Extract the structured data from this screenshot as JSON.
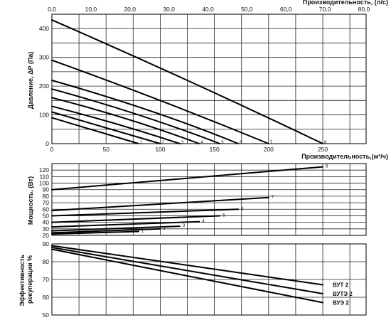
{
  "chart_data": [
    {
      "type": "line",
      "title": "",
      "xlabel": "Производительность,(м³/ч)",
      "x2label": "Производительность, (л/с)",
      "ylabel": "Давление, ΔP (Па)",
      "xlim": [
        0,
        290
      ],
      "ylim": [
        0,
        450
      ],
      "xticks": [
        "0",
        "50",
        "100",
        "150",
        "200",
        "250"
      ],
      "x2ticks": [
        "0,0",
        "10,0",
        "20,0",
        "30,0",
        "40,0",
        "50,0",
        "60,0",
        "70,0",
        "80,0"
      ],
      "yticks": [
        "0",
        "100",
        "200",
        "300",
        "400"
      ],
      "grid": true,
      "series": [
        {
          "name": "1",
          "x": [
            0,
            40,
            80
          ],
          "y": [
            90,
            45,
            0
          ]
        },
        {
          "name": "2",
          "x": [
            0,
            50,
            100
          ],
          "y": [
            110,
            55,
            0
          ]
        },
        {
          "name": "3",
          "x": [
            0,
            60,
            118
          ],
          "y": [
            130,
            68,
            0
          ]
        },
        {
          "name": "4",
          "x": [
            0,
            70,
            136
          ],
          "y": [
            160,
            85,
            0
          ]
        },
        {
          "name": "5",
          "x": [
            0,
            80,
            155
          ],
          "y": [
            190,
            100,
            0
          ]
        },
        {
          "name": "6",
          "x": [
            0,
            90,
            172
          ],
          "y": [
            220,
            115,
            0
          ]
        },
        {
          "name": "7",
          "x": [
            0,
            100,
            200
          ],
          "y": [
            290,
            150,
            0
          ]
        },
        {
          "name": "8",
          "x": [
            0,
            125,
            250
          ],
          "y": [
            430,
            220,
            0
          ]
        }
      ]
    },
    {
      "type": "line",
      "title": "",
      "xlabel": "",
      "ylabel": "Мощность, (Вт)",
      "xlim": [
        0,
        290
      ],
      "ylim": [
        20,
        130
      ],
      "yticks": [
        "20",
        "30",
        "40",
        "50",
        "60",
        "70",
        "80",
        "90",
        "100",
        "110",
        "120"
      ],
      "grid": true,
      "series": [
        {
          "name": "1",
          "x": [
            0,
            80
          ],
          "y": [
            22,
            26
          ]
        },
        {
          "name": "2",
          "x": [
            0,
            100
          ],
          "y": [
            24,
            30
          ]
        },
        {
          "name": "3",
          "x": [
            0,
            118
          ],
          "y": [
            27,
            34
          ]
        },
        {
          "name": "4",
          "x": [
            0,
            136
          ],
          "y": [
            33,
            41
          ]
        },
        {
          "name": "5",
          "x": [
            0,
            155
          ],
          "y": [
            40,
            50
          ]
        },
        {
          "name": "6",
          "x": [
            0,
            172
          ],
          "y": [
            50,
            60
          ]
        },
        {
          "name": "7",
          "x": [
            0,
            200
          ],
          "y": [
            58,
            78
          ]
        },
        {
          "name": "8",
          "x": [
            0,
            250
          ],
          "y": [
            90,
            125
          ]
        }
      ]
    },
    {
      "type": "line",
      "title": "",
      "xlabel": "",
      "ylabel": "Эффективность рекуперации %",
      "xlim": [
        0,
        290
      ],
      "ylim": [
        50,
        90
      ],
      "yticks": [
        "50",
        "60",
        "70",
        "80",
        "90"
      ],
      "grid": true,
      "series": [
        {
          "name": "ВУТ 2",
          "x": [
            0,
            250
          ],
          "y": [
            89,
            67
          ]
        },
        {
          "name": "ВУТЭ 2",
          "x": [
            0,
            250
          ],
          "y": [
            88,
            62
          ]
        },
        {
          "name": "ВУЭ 2",
          "x": [
            0,
            250
          ],
          "y": [
            87,
            57
          ]
        }
      ]
    }
  ]
}
